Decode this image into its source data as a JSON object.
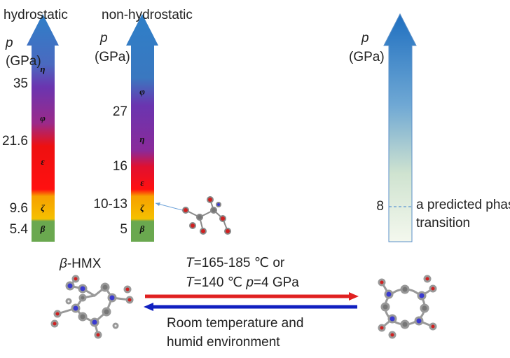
{
  "columns": [
    {
      "title": "hydrostatic",
      "symbol": "p",
      "unit": "(GPa)",
      "pressures": [
        "35",
        "21.6",
        "9.6",
        "5.4"
      ],
      "phases": [
        "η",
        "φ",
        "ε",
        "ζ",
        "β"
      ]
    },
    {
      "title": "non-hydrostatic",
      "symbol": "p",
      "unit": "(GPa)",
      "pressures": [
        "27",
        "16",
        "10-13",
        "5"
      ],
      "phases": [
        "φ",
        "η",
        "ε",
        "ζ",
        "β"
      ]
    },
    {
      "symbol": "p",
      "unit": "(GPa)",
      "pressures": [
        "8"
      ],
      "note": [
        "a predicted phase",
        "transition"
      ]
    }
  ],
  "compound": [
    {
      "text": "β",
      "italic": true
    },
    {
      "text": "-HMX"
    }
  ],
  "forward": [
    [
      {
        "text": "T",
        "italic": true
      },
      {
        "text": "=165-185 ℃ or"
      }
    ],
    [
      {
        "text": "T",
        "italic": true
      },
      {
        "text": "=140 ℃ "
      },
      {
        "text": "p",
        "italic": true
      },
      {
        "text": "=4 GPa"
      }
    ]
  ],
  "reverse": [
    "Room temperature and",
    "humid environment"
  ]
}
